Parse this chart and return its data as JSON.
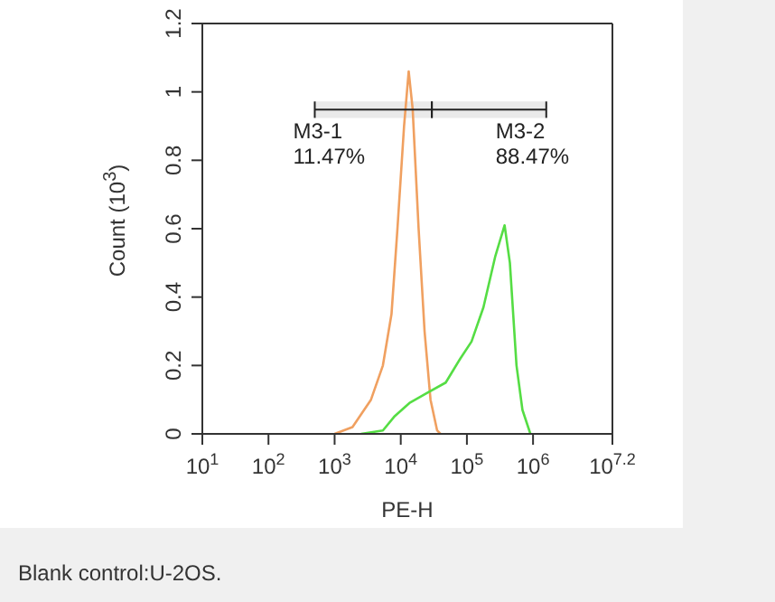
{
  "chart_data": {
    "type": "line",
    "xlabel": "PE-H",
    "ylabel": "Count (10$^{3}$)",
    "log": "x",
    "xlim": [
      10,
      15848932
    ],
    "xticks": [
      {
        "value": 10,
        "label": "10$^{1}$"
      },
      {
        "value": 100,
        "label": "10$^{2}$"
      },
      {
        "value": 1000,
        "label": "10$^{3}$"
      },
      {
        "value": 10000,
        "label": "10$^{4}$"
      },
      {
        "value": 100000,
        "label": "10$^{5}$"
      },
      {
        "value": 1000000,
        "label": "10$^{6}$"
      },
      {
        "value": 15848932,
        "label": "10$^{7.2}$"
      }
    ],
    "ylim": [
      0,
      1.2
    ],
    "yticks": [
      0,
      0.2,
      0.4,
      0.6,
      0.8,
      1,
      1.2
    ],
    "marker": "none",
    "line_style": "solid",
    "series": [
      {
        "color": "#f0a060",
        "x": [
          1000,
          1862,
          3548,
          5370,
          7244,
          8913,
          11220,
          13183,
          15136,
          18621,
          22909,
          28184,
          35481,
          39811
        ],
        "values": [
          0,
          0.02,
          0.1,
          0.2,
          0.35,
          0.6,
          0.9,
          1.06,
          0.95,
          0.6,
          0.3,
          0.1,
          0.01,
          0
        ]
      },
      {
        "color": "#55dd44",
        "x": [
          2512,
          5370,
          7943,
          13490,
          25119,
          47863,
          79433,
          117490,
          177828,
          269153,
          371535,
          446684,
          562341,
          691831,
          912011
        ],
        "values": [
          0,
          0.01,
          0.05,
          0.09,
          0.12,
          0.15,
          0.22,
          0.27,
          0.37,
          0.52,
          0.61,
          0.5,
          0.2,
          0.07,
          0
        ]
      }
    ],
    "bands": [
      {
        "axis": "x",
        "from": 501,
        "to": 29512,
        "label": "M3-1\n11.47%"
      },
      {
        "axis": "x",
        "from": 29512,
        "to": 1584893,
        "label": "M3-2\n88.47%"
      }
    ],
    "annotations": [
      "Blank control:U-2OS."
    ]
  }
}
